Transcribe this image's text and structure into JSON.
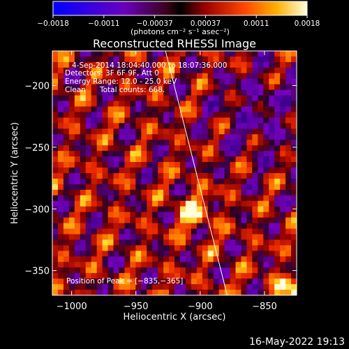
{
  "chart_data": {
    "type": "heatmap",
    "title": "Reconstructed RHESSI Image",
    "xlabel": "Heliocentric X (arcsec)",
    "ylabel": "Heliocentric Y (arcsec)",
    "xlim": [
      -1015,
      -825
    ],
    "ylim": [
      -370,
      -172
    ],
    "x_ticks": [
      -1000,
      -950,
      -900,
      -850
    ],
    "x_tick_labels": [
      "−1000",
      "−950",
      "−900",
      "−850"
    ],
    "y_ticks": [
      -200,
      -250,
      -300,
      -350
    ],
    "y_tick_labels": [
      "−200",
      "−250",
      "−300",
      "−350"
    ],
    "colorbar": {
      "min": -0.0018,
      "max": 0.0018,
      "tick_labels": [
        "−0.0018",
        "−0.0011",
        "−0.00037",
        "0.00037",
        "0.0011",
        "0.0018"
      ],
      "units_label": "(photons cm⁻² s⁻¹ asec⁻²)"
    },
    "annotations": {
      "time_range": "4-Sep-2014 18:04:40.000 to 18:07:36.000",
      "detectors": "Detectors: 3F 6F 9F, Att 0",
      "energy_range": "Energy Range: 12.0 - 25.0 keV",
      "clean": "Clean",
      "total_counts": "Total counts: 668.",
      "peak": "Position of Peak = [−835,−365]"
    },
    "peak_position": [
      -835,
      -365
    ],
    "limb_line": [
      [
        -927,
        -172
      ],
      [
        -879,
        -370
      ]
    ]
  },
  "footer": {
    "date": "16-May-2022 19:13"
  }
}
